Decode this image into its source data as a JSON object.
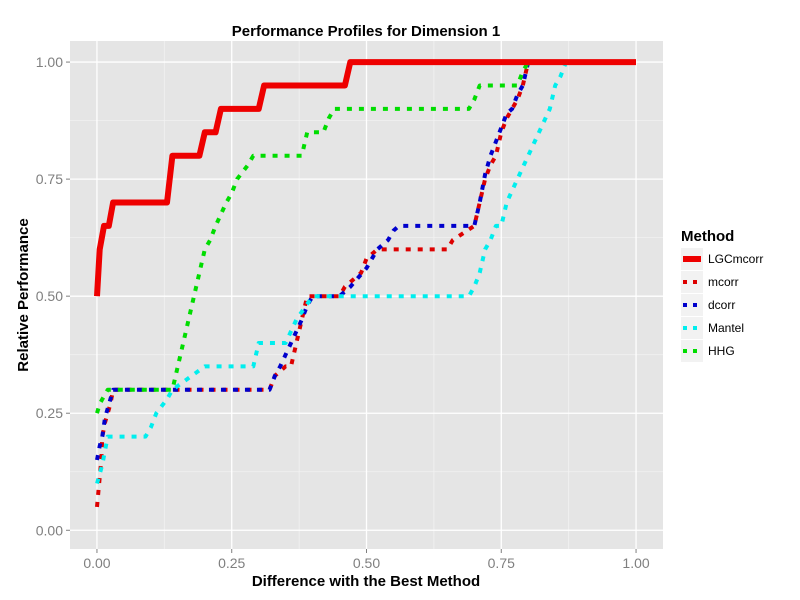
{
  "chart_data": {
    "type": "line",
    "title": "Performance Profiles for Dimension 1",
    "xlabel": "Difference with the Best Method",
    "ylabel": "Relative Performance",
    "xlim": [
      -0.05,
      1.05
    ],
    "ylim": [
      -0.04,
      1.045
    ],
    "x_ticks": [
      0,
      0.25,
      0.5,
      0.75,
      1
    ],
    "x_tick_labels": [
      "0.00",
      "0.25",
      "0.50",
      "0.75",
      "1.00"
    ],
    "y_ticks": [
      0,
      0.25,
      0.5,
      0.75,
      1
    ],
    "y_tick_labels": [
      "0.00",
      "0.25",
      "0.50",
      "0.75",
      "1.00"
    ],
    "grid": true,
    "legend": {
      "title": "Method",
      "position": "right"
    },
    "series": [
      {
        "name": "LGCmcorr",
        "color": "#ee0000",
        "style": "solid",
        "width": 6,
        "x": [
          0,
          0.005,
          0.005,
          0.013,
          0.013,
          0.022,
          0.022,
          0.03,
          0.03,
          0.13,
          0.13,
          0.14,
          0.14,
          0.19,
          0.19,
          0.2,
          0.2,
          0.22,
          0.22,
          0.23,
          0.23,
          0.3,
          0.3,
          0.31,
          0.31,
          0.46,
          0.46,
          0.47,
          0.47,
          1.0
        ],
        "y": [
          0.5,
          0.6,
          0.6,
          0.65,
          0.65,
          0.65,
          0.65,
          0.7,
          0.7,
          0.7,
          0.7,
          0.8,
          0.8,
          0.8,
          0.8,
          0.85,
          0.85,
          0.85,
          0.85,
          0.9,
          0.9,
          0.9,
          0.9,
          0.95,
          0.95,
          0.95,
          0.95,
          1.0,
          1.0,
          1.0
        ]
      },
      {
        "name": "mcorr",
        "color": "#dd0000",
        "style": "dotted",
        "width": 4,
        "x": [
          0,
          0.008,
          0.01,
          0.015,
          0.02,
          0.025,
          0.03,
          0.32,
          0.33,
          0.35,
          0.36,
          0.39,
          0.4,
          0.45,
          0.46,
          0.49,
          0.5,
          0.52,
          0.54,
          0.65,
          0.66,
          0.7,
          0.71,
          0.72,
          0.73,
          0.74,
          0.75,
          0.76,
          0.77,
          0.78,
          0.79,
          0.8,
          1.0
        ],
        "y": [
          0.05,
          0.15,
          0.2,
          0.23,
          0.25,
          0.27,
          0.3,
          0.3,
          0.33,
          0.35,
          0.35,
          0.5,
          0.5,
          0.5,
          0.52,
          0.55,
          0.58,
          0.6,
          0.6,
          0.6,
          0.62,
          0.65,
          0.7,
          0.75,
          0.78,
          0.8,
          0.85,
          0.88,
          0.9,
          0.92,
          0.95,
          1.0,
          1.0
        ]
      },
      {
        "name": "dcorr",
        "color": "#0000cc",
        "style": "dotted",
        "width": 4,
        "x": [
          0,
          0.005,
          0.01,
          0.015,
          0.02,
          0.025,
          0.03,
          0.32,
          0.33,
          0.34,
          0.36,
          0.38,
          0.39,
          0.4,
          0.45,
          0.47,
          0.5,
          0.52,
          0.54,
          0.55,
          0.56,
          0.7,
          0.71,
          0.72,
          0.73,
          0.74,
          0.75,
          0.76,
          0.77,
          0.78,
          0.79,
          0.8,
          1.0
        ],
        "y": [
          0.15,
          0.18,
          0.2,
          0.24,
          0.26,
          0.28,
          0.3,
          0.3,
          0.33,
          0.35,
          0.4,
          0.45,
          0.48,
          0.5,
          0.5,
          0.52,
          0.56,
          0.6,
          0.62,
          0.64,
          0.65,
          0.65,
          0.7,
          0.76,
          0.8,
          0.83,
          0.86,
          0.89,
          0.9,
          0.93,
          0.95,
          1.0,
          1.0
        ]
      },
      {
        "name": "Mantel",
        "color": "#00eeee",
        "style": "dotted",
        "width": 4,
        "x": [
          0,
          0.005,
          0.01,
          0.015,
          0.02,
          0.03,
          0.09,
          0.1,
          0.11,
          0.13,
          0.14,
          0.2,
          0.22,
          0.29,
          0.3,
          0.35,
          0.37,
          0.4,
          0.42,
          0.69,
          0.7,
          0.71,
          0.72,
          0.73,
          0.74,
          0.75,
          0.76,
          0.78,
          0.8,
          0.82,
          0.84,
          0.85,
          0.86,
          0.87,
          1.0
        ],
        "y": [
          0.1,
          0.12,
          0.14,
          0.17,
          0.2,
          0.2,
          0.2,
          0.22,
          0.25,
          0.28,
          0.3,
          0.35,
          0.35,
          0.35,
          0.4,
          0.4,
          0.45,
          0.5,
          0.5,
          0.5,
          0.52,
          0.55,
          0.6,
          0.62,
          0.65,
          0.65,
          0.7,
          0.75,
          0.8,
          0.85,
          0.9,
          0.95,
          0.97,
          1.0,
          1.0
        ]
      },
      {
        "name": "HHG",
        "color": "#00dd00",
        "style": "dotted",
        "width": 4,
        "x": [
          0,
          0.005,
          0.01,
          0.02,
          0.03,
          0.14,
          0.15,
          0.16,
          0.17,
          0.18,
          0.19,
          0.2,
          0.21,
          0.22,
          0.24,
          0.25,
          0.26,
          0.28,
          0.29,
          0.3,
          0.38,
          0.39,
          0.42,
          0.43,
          0.44,
          0.69,
          0.7,
          0.71,
          0.72,
          0.75,
          0.78,
          0.79,
          0.8,
          1.0
        ],
        "y": [
          0.25,
          0.27,
          0.28,
          0.3,
          0.3,
          0.3,
          0.35,
          0.4,
          0.45,
          0.5,
          0.55,
          0.6,
          0.62,
          0.65,
          0.7,
          0.72,
          0.75,
          0.78,
          0.8,
          0.8,
          0.8,
          0.85,
          0.85,
          0.88,
          0.9,
          0.9,
          0.92,
          0.95,
          0.95,
          0.95,
          0.95,
          0.98,
          1.0,
          1.0
        ]
      }
    ]
  }
}
